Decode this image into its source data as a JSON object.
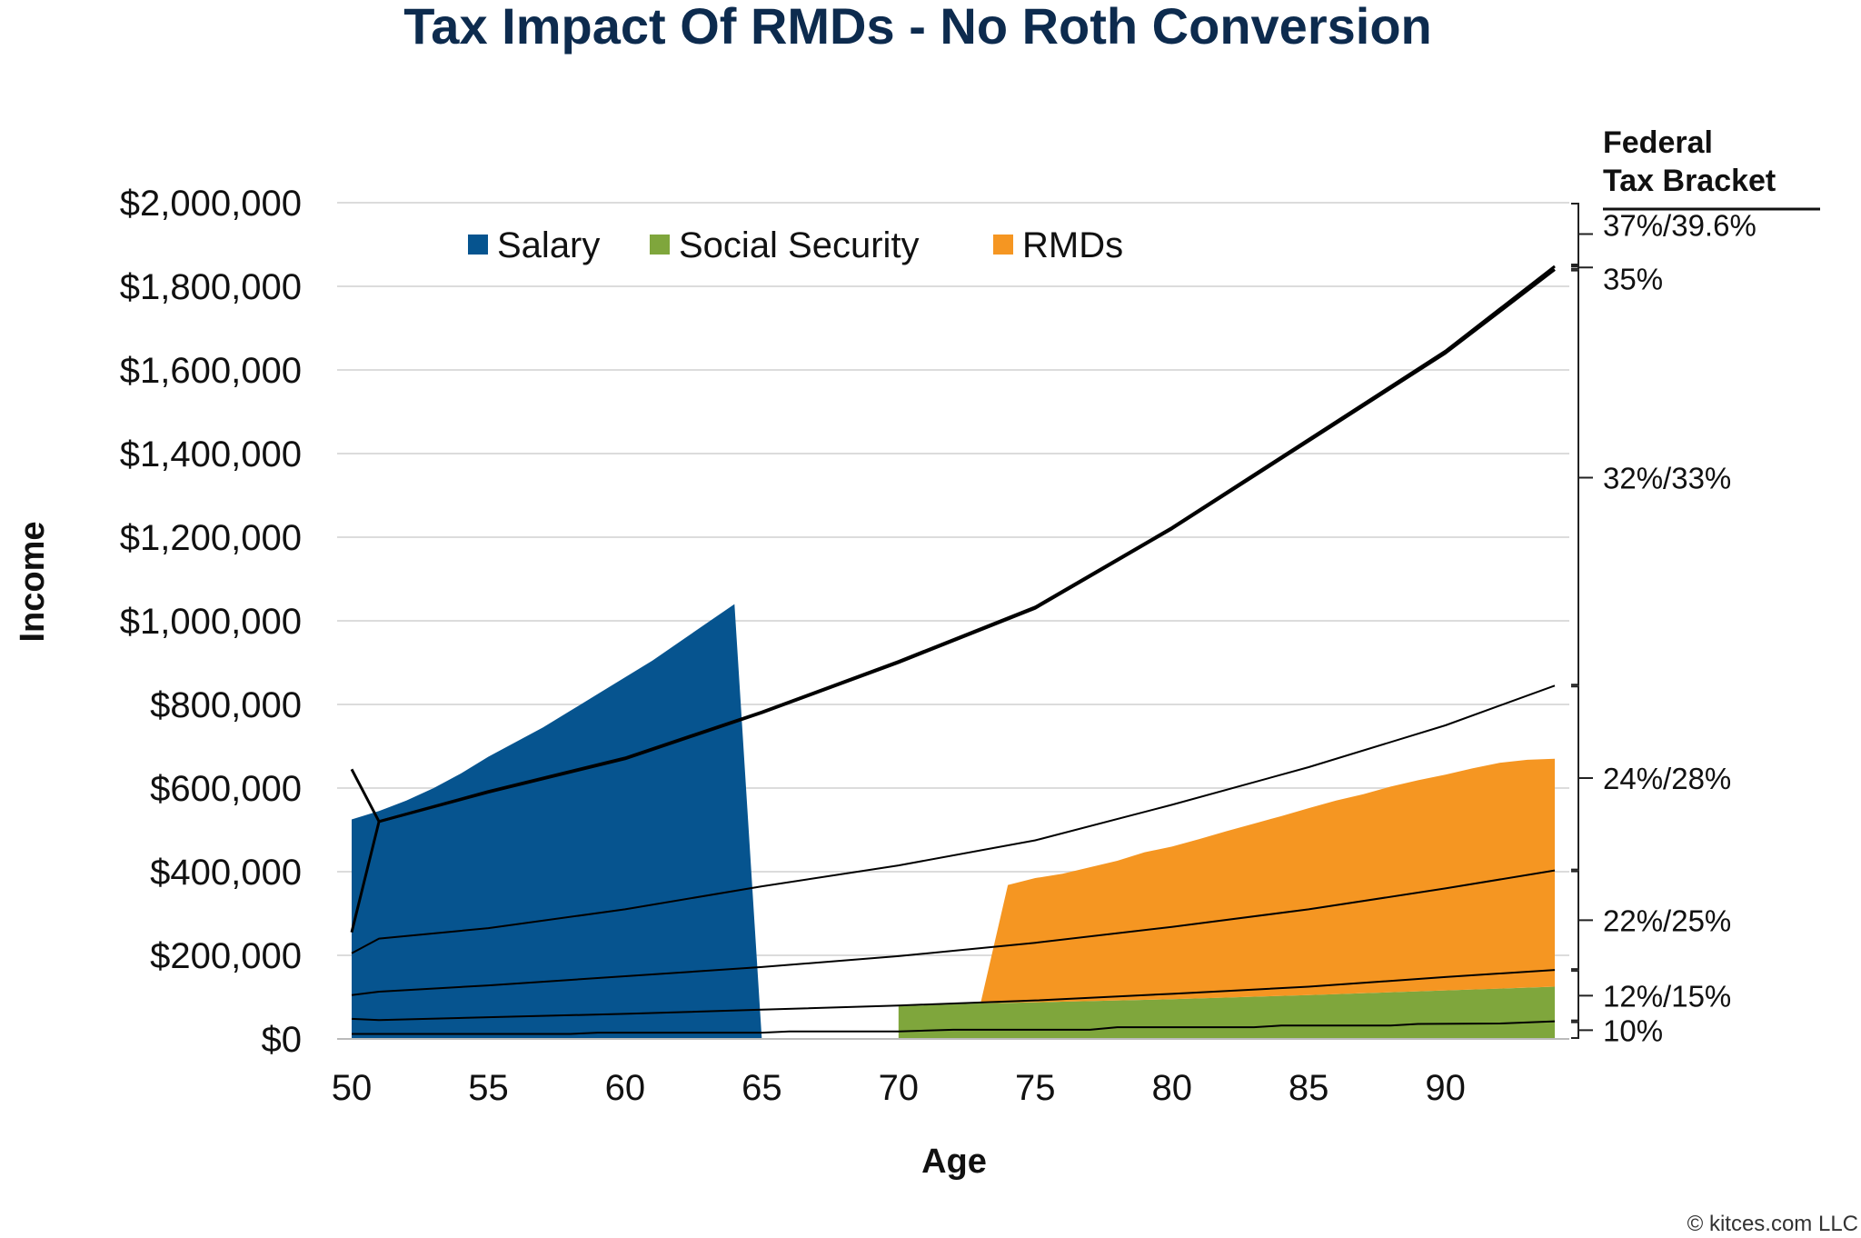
{
  "chart_data": {
    "type": "area",
    "title": "Tax Impact Of RMDs - No Roth Conversion",
    "xlabel": "Age",
    "ylabel": "Income",
    "xlim": [
      50,
      94
    ],
    "ylim": [
      0,
      2000000
    ],
    "x_ticks": [
      "50",
      "55",
      "60",
      "65",
      "70",
      "75",
      "80",
      "85",
      "90"
    ],
    "y_ticks": [
      "$0",
      "$200,000",
      "$400,000",
      "$600,000",
      "$800,000",
      "$1,000,000",
      "$1,200,000",
      "$1,400,000",
      "$1,600,000",
      "$1,800,000",
      "$2,000,000"
    ],
    "grid": true,
    "legend_position": "top",
    "stacked": true,
    "series": [
      {
        "name": "Salary",
        "color": "#06548f",
        "points": [
          [
            50,
            525000
          ],
          [
            51,
            545000
          ],
          [
            52,
            570000
          ],
          [
            53,
            600000
          ],
          [
            54,
            635000
          ],
          [
            55,
            675000
          ],
          [
            56,
            710000
          ],
          [
            57,
            745000
          ],
          [
            58,
            785000
          ],
          [
            59,
            825000
          ],
          [
            60,
            865000
          ],
          [
            61,
            905000
          ],
          [
            62,
            950000
          ],
          [
            63,
            995000
          ],
          [
            64,
            1040000
          ],
          [
            65,
            0
          ]
        ]
      },
      {
        "name": "Social Security",
        "color": "#7fa63c",
        "points": [
          [
            70,
            78000
          ],
          [
            73,
            85000
          ],
          [
            76,
            89000
          ],
          [
            80,
            95000
          ],
          [
            85,
            105000
          ],
          [
            90,
            116000
          ],
          [
            94,
            125000
          ]
        ]
      },
      {
        "name": "RMDs",
        "color": "#f59622",
        "points": [
          [
            73,
            0
          ],
          [
            74,
            282000
          ],
          [
            75,
            297000
          ],
          [
            76,
            306000
          ],
          [
            77,
            320000
          ],
          [
            78,
            334000
          ],
          [
            79,
            353000
          ],
          [
            80,
            365000
          ],
          [
            81,
            381000
          ],
          [
            82,
            398000
          ],
          [
            83,
            414000
          ],
          [
            84,
            430000
          ],
          [
            85,
            447000
          ],
          [
            86,
            463000
          ],
          [
            87,
            476000
          ],
          [
            88,
            492000
          ],
          [
            89,
            505000
          ],
          [
            90,
            516000
          ],
          [
            91,
            529000
          ],
          [
            92,
            540000
          ],
          [
            93,
            545000
          ],
          [
            94,
            545000
          ]
        ]
      }
    ],
    "bracket_thresholds": [
      {
        "bracket": "10%",
        "points": [
          [
            50,
            12000
          ],
          [
            58,
            12000
          ],
          [
            59,
            15000
          ],
          [
            65,
            15000
          ],
          [
            66,
            18000
          ],
          [
            70,
            18000
          ],
          [
            72,
            22000
          ],
          [
            77,
            22000
          ],
          [
            78,
            28000
          ],
          [
            83,
            28000
          ],
          [
            84,
            32000
          ],
          [
            88,
            32000
          ],
          [
            89,
            36000
          ],
          [
            92,
            37000
          ],
          [
            94,
            42000
          ]
        ]
      },
      {
        "bracket": "12%",
        "points": [
          [
            50,
            48000
          ],
          [
            51,
            45000
          ],
          [
            55,
            52000
          ],
          [
            60,
            60000
          ],
          [
            65,
            70000
          ],
          [
            70,
            80000
          ],
          [
            75,
            92000
          ],
          [
            80,
            108000
          ],
          [
            85,
            125000
          ],
          [
            90,
            148000
          ],
          [
            94,
            165000
          ]
        ]
      },
      {
        "bracket": "22%",
        "points": [
          [
            50,
            105000
          ],
          [
            51,
            113000
          ],
          [
            55,
            128000
          ],
          [
            60,
            150000
          ],
          [
            65,
            172000
          ],
          [
            70,
            198000
          ],
          [
            75,
            230000
          ],
          [
            80,
            268000
          ],
          [
            85,
            310000
          ],
          [
            90,
            360000
          ],
          [
            94,
            403000
          ]
        ]
      },
      {
        "bracket": "24%",
        "points": [
          [
            50,
            205000
          ],
          [
            51,
            240000
          ],
          [
            55,
            265000
          ],
          [
            60,
            310000
          ],
          [
            65,
            365000
          ],
          [
            70,
            415000
          ],
          [
            75,
            475000
          ],
          [
            80,
            560000
          ],
          [
            85,
            650000
          ],
          [
            90,
            750000
          ],
          [
            94,
            845000
          ]
        ]
      },
      {
        "bracket": "32%",
        "points": [
          [
            50,
            255000
          ],
          [
            51,
            520000
          ],
          [
            55,
            590000
          ],
          [
            60,
            670000
          ],
          [
            65,
            780000
          ],
          [
            70,
            900000
          ],
          [
            75,
            1030000
          ],
          [
            80,
            1220000
          ],
          [
            85,
            1430000
          ],
          [
            90,
            1640000
          ],
          [
            94,
            1840000
          ]
        ]
      },
      {
        "bracket": "35%",
        "points": [
          [
            50,
            645000
          ],
          [
            51,
            520000
          ],
          [
            55,
            592000
          ],
          [
            60,
            672000
          ],
          [
            65,
            782000
          ],
          [
            70,
            903000
          ],
          [
            75,
            1033000
          ],
          [
            80,
            1223000
          ],
          [
            85,
            1434000
          ],
          [
            90,
            1645000
          ],
          [
            94,
            1848000
          ]
        ]
      }
    ],
    "bracket_header": [
      "Federal",
      "Tax Bracket"
    ],
    "bracket_labels": [
      {
        "label": "37%/39.6%",
        "range": [
          1850000,
          2000000
        ]
      },
      {
        "label": "35%",
        "range": [
          1840000,
          1850000
        ]
      },
      {
        "label": "32%/33%",
        "range": [
          845000,
          1840000
        ]
      },
      {
        "label": "24%/28%",
        "range": [
          403000,
          845000
        ]
      },
      {
        "label": "22%/25%",
        "range": [
          165000,
          403000
        ]
      },
      {
        "label": "12%/15%",
        "range": [
          42000,
          165000
        ]
      },
      {
        "label": "10%",
        "range": [
          0,
          42000
        ]
      }
    ]
  },
  "copyright": "© kitces.com LLC"
}
